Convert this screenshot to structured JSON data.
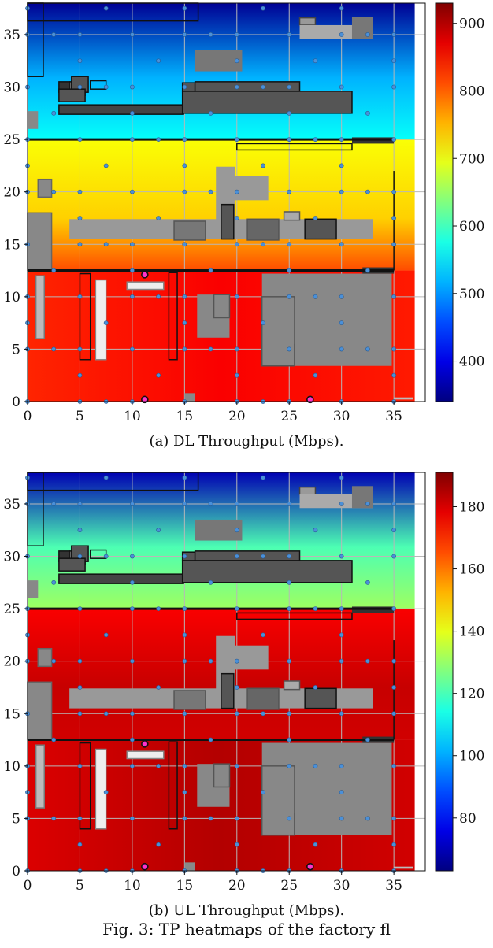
{
  "figure_caption": "Fig. 3: TP heatmaps of the factory fl",
  "chart_data": [
    {
      "type": "heatmap",
      "caption": "(a) DL Throughput (Mbps).",
      "xlabel": "",
      "ylabel": "",
      "xlim": [
        0,
        38
      ],
      "ylim": [
        0,
        38
      ],
      "x_ticks": [
        0,
        5,
        10,
        15,
        20,
        25,
        30,
        35
      ],
      "y_ticks": [
        0,
        5,
        10,
        15,
        20,
        25,
        30,
        35
      ],
      "colorbar": {
        "min": 340,
        "max": 930,
        "ticks": [
          400,
          500,
          600,
          700,
          800,
          900
        ]
      },
      "grid": true,
      "regions": [
        {
          "name": "north",
          "y_range": [
            25,
            38
          ],
          "level": 0.3,
          "top_level": 0.02
        },
        {
          "name": "middle",
          "y_range": [
            12.5,
            25
          ],
          "level": 0.62,
          "bottom_level": 0.8
        },
        {
          "name": "south",
          "y_range": [
            0,
            12.5
          ],
          "level": 0.88
        }
      ],
      "special_points": [
        {
          "x": 11.2,
          "y": 12.1
        },
        {
          "x": 11.2,
          "y": 0.2
        },
        {
          "x": 27.0,
          "y": 0.2
        }
      ]
    },
    {
      "type": "heatmap",
      "caption": "(b) UL Throughput (Mbps).",
      "xlabel": "",
      "ylabel": "",
      "xlim": [
        0,
        38
      ],
      "ylim": [
        0,
        38
      ],
      "x_ticks": [
        0,
        5,
        10,
        15,
        20,
        25,
        30,
        35
      ],
      "y_ticks": [
        0,
        5,
        10,
        15,
        20,
        25,
        30,
        35
      ],
      "colorbar": {
        "min": 63,
        "max": 191,
        "ticks": [
          80,
          100,
          120,
          140,
          160,
          180
        ]
      },
      "grid": true,
      "regions": [
        {
          "name": "north",
          "y_range": [
            25,
            38
          ],
          "level": 0.45,
          "top_level": 0.05
        },
        {
          "name": "middle",
          "y_range": [
            12.5,
            25
          ],
          "level": 0.88,
          "bottom_level": 0.92
        },
        {
          "name": "south",
          "y_range": [
            0,
            12.5
          ],
          "level": 0.95
        }
      ],
      "special_points": [
        {
          "x": 11.2,
          "y": 12.1
        },
        {
          "x": 11.2,
          "y": 0.4
        },
        {
          "x": 27.0,
          "y": 0.4
        }
      ]
    }
  ]
}
